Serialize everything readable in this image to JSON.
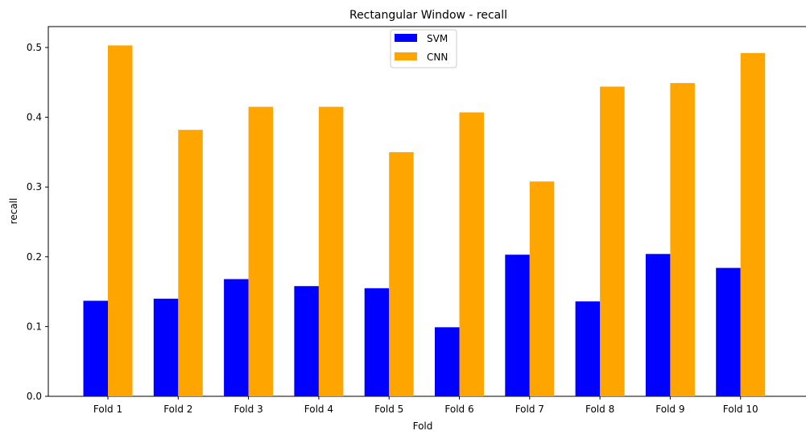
{
  "chart_data": {
    "type": "bar",
    "title": "Rectangular Window - recall",
    "xlabel": "Fold",
    "ylabel": "recall",
    "categories": [
      "Fold 1",
      "Fold 2",
      "Fold 3",
      "Fold 4",
      "Fold 5",
      "Fold 6",
      "Fold 7",
      "Fold 8",
      "Fold 9",
      "Fold 10"
    ],
    "series": [
      {
        "name": "SVM",
        "color": "#0000ff",
        "values": [
          0.137,
          0.14,
          0.168,
          0.158,
          0.155,
          0.099,
          0.203,
          0.136,
          0.204,
          0.184
        ]
      },
      {
        "name": "CNN",
        "color": "#ffa500",
        "values": [
          0.503,
          0.382,
          0.415,
          0.415,
          0.35,
          0.407,
          0.308,
          0.444,
          0.449,
          0.492
        ]
      }
    ],
    "ylim": [
      0,
      0.53
    ],
    "yticks": [
      "0.0",
      "0.1",
      "0.2",
      "0.3",
      "0.4",
      "0.5"
    ],
    "grid": false,
    "legend_position": "top-center"
  }
}
